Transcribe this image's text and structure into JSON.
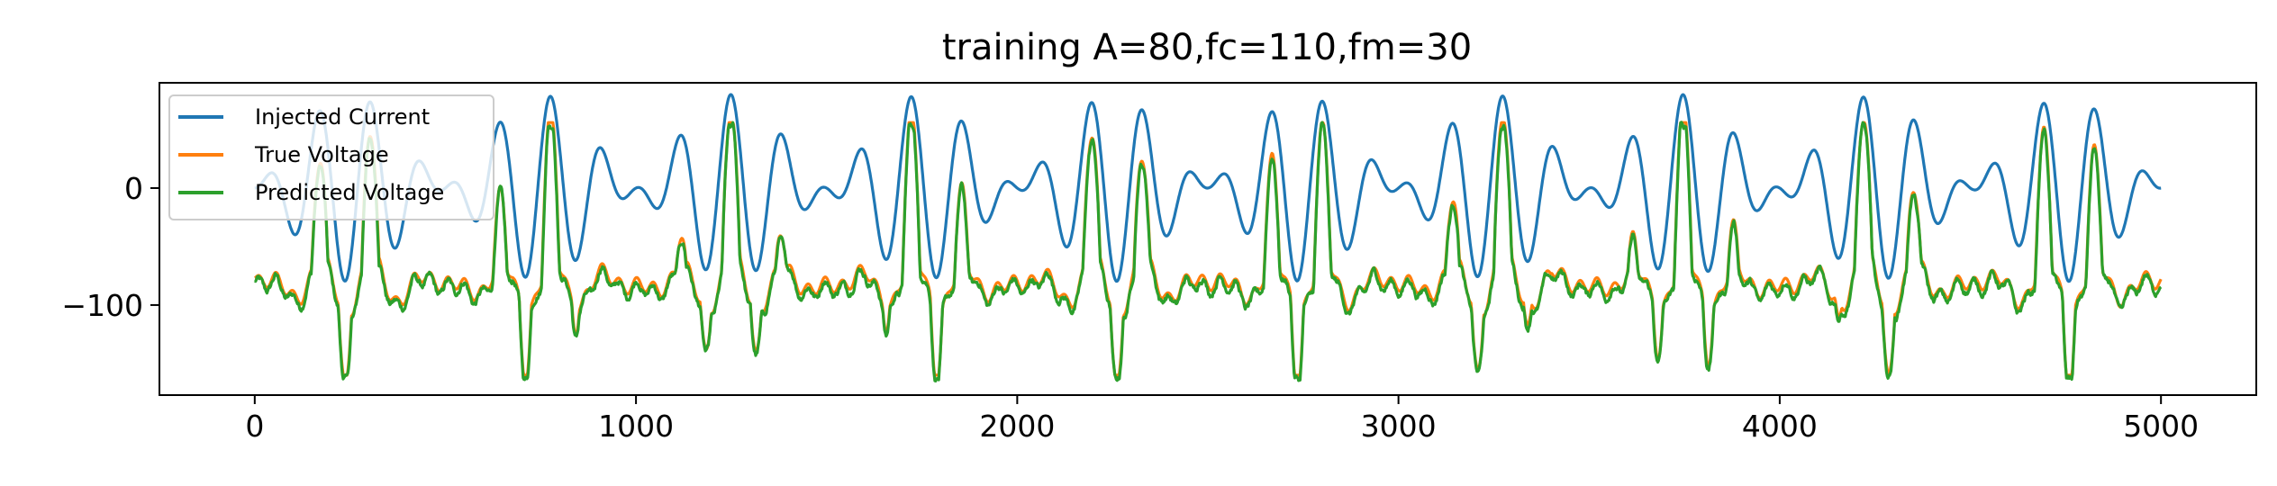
{
  "chart_data": {
    "type": "line",
    "title": "training A=80,fc=110,fm=30",
    "xlabel": "",
    "ylabel": "",
    "xlim": [
      -250,
      5250
    ],
    "ylim": [
      -177,
      90
    ],
    "x_ticks": [
      0,
      1000,
      2000,
      3000,
      4000,
      5000
    ],
    "x_tick_labels": [
      "0",
      "1000",
      "2000",
      "3000",
      "4000",
      "5000"
    ],
    "y_ticks": [
      0,
      -100
    ],
    "y_tick_labels": [
      "0",
      "−100"
    ],
    "grid": false,
    "legend_position": "upper-left",
    "x_start": 0,
    "x_end": 5000,
    "series": [
      {
        "name": "Injected Current",
        "color": "#1f77b4",
        "description": "amplitude-modulated sinusoid, amplitude 80, carrier 110, modulation 30, oscillating roughly between -75 and 78"
      },
      {
        "name": "True Voltage",
        "color": "#ff7f0e",
        "description": "membrane voltage response, baseline about -65 to -90 with spikes up to about 55 and troughs near -160"
      },
      {
        "name": "Predicted Voltage",
        "color": "#2ca02c",
        "description": "model prediction closely tracking True Voltage"
      }
    ]
  }
}
